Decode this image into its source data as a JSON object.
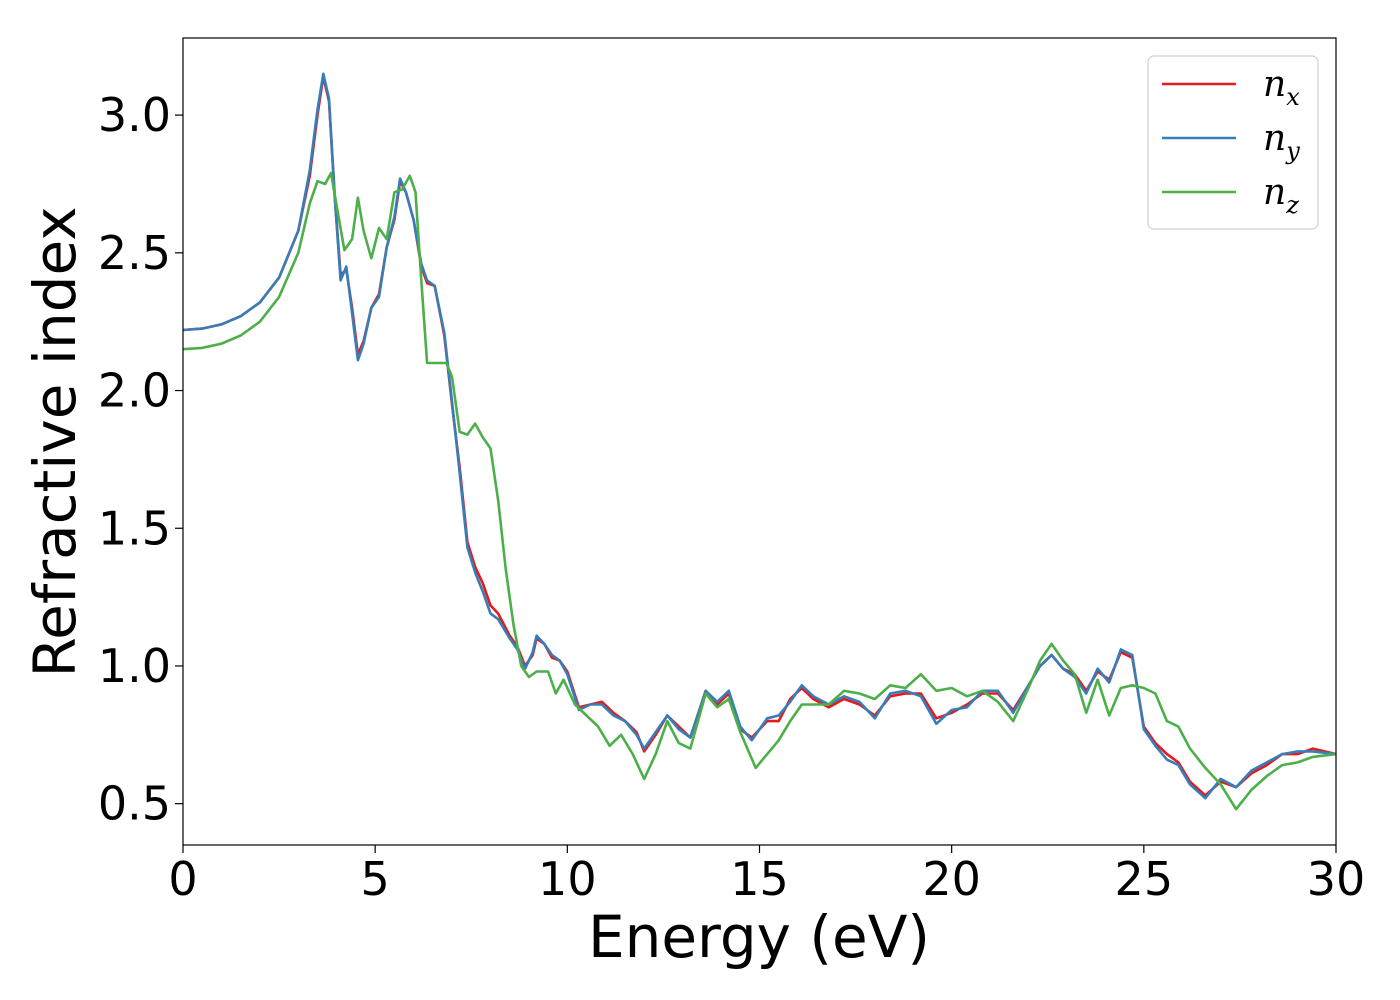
{
  "chart_data": {
    "type": "line",
    "xlabel": "Energy (eV)",
    "ylabel": "Refractive index",
    "xlim": [
      0,
      30
    ],
    "ylim": [
      0.35,
      3.28
    ],
    "xticks": [
      "0",
      "5",
      "10",
      "15",
      "20",
      "25",
      "30"
    ],
    "yticks": [
      "0.5",
      "1.0",
      "1.5",
      "2.0",
      "2.5",
      "3.0"
    ],
    "grid": false,
    "legend_position": "top-right",
    "series": [
      {
        "name": "n_x",
        "label_base": "n",
        "label_sub": "x",
        "color": "#e41a1c",
        "points": [
          [
            0,
            2.22
          ],
          [
            0.5,
            2.225
          ],
          [
            1,
            2.24
          ],
          [
            1.5,
            2.27
          ],
          [
            2,
            2.32
          ],
          [
            2.5,
            2.41
          ],
          [
            3,
            2.58
          ],
          [
            3.3,
            2.78
          ],
          [
            3.5,
            3.0
          ],
          [
            3.65,
            3.14
          ],
          [
            3.8,
            3.05
          ],
          [
            3.95,
            2.7
          ],
          [
            4.1,
            2.42
          ],
          [
            4.25,
            2.44
          ],
          [
            4.4,
            2.3
          ],
          [
            4.55,
            2.13
          ],
          [
            4.7,
            2.18
          ],
          [
            4.9,
            2.3
          ],
          [
            5.1,
            2.35
          ],
          [
            5.3,
            2.52
          ],
          [
            5.5,
            2.62
          ],
          [
            5.65,
            2.76
          ],
          [
            5.8,
            2.72
          ],
          [
            6.0,
            2.62
          ],
          [
            6.2,
            2.45
          ],
          [
            6.35,
            2.39
          ],
          [
            6.55,
            2.38
          ],
          [
            6.8,
            2.2
          ],
          [
            7.0,
            1.95
          ],
          [
            7.2,
            1.72
          ],
          [
            7.4,
            1.45
          ],
          [
            7.6,
            1.36
          ],
          [
            7.8,
            1.3
          ],
          [
            8.0,
            1.22
          ],
          [
            8.2,
            1.19
          ],
          [
            8.5,
            1.11
          ],
          [
            8.7,
            1.07
          ],
          [
            8.9,
            1.0
          ],
          [
            9.1,
            1.04
          ],
          [
            9.2,
            1.1
          ],
          [
            9.4,
            1.08
          ],
          [
            9.6,
            1.03
          ],
          [
            9.8,
            1.02
          ],
          [
            10.0,
            0.98
          ],
          [
            10.3,
            0.85
          ],
          [
            10.6,
            0.86
          ],
          [
            10.9,
            0.87
          ],
          [
            11.2,
            0.83
          ],
          [
            11.5,
            0.8
          ],
          [
            11.8,
            0.76
          ],
          [
            12.0,
            0.69
          ],
          [
            12.3,
            0.75
          ],
          [
            12.6,
            0.82
          ],
          [
            12.9,
            0.78
          ],
          [
            13.2,
            0.74
          ],
          [
            13.6,
            0.91
          ],
          [
            13.9,
            0.86
          ],
          [
            14.2,
            0.9
          ],
          [
            14.5,
            0.77
          ],
          [
            14.8,
            0.74
          ],
          [
            15.2,
            0.8
          ],
          [
            15.5,
            0.8
          ],
          [
            15.8,
            0.88
          ],
          [
            16.1,
            0.92
          ],
          [
            16.4,
            0.88
          ],
          [
            16.8,
            0.85
          ],
          [
            17.2,
            0.88
          ],
          [
            17.6,
            0.86
          ],
          [
            18.0,
            0.82
          ],
          [
            18.4,
            0.89
          ],
          [
            18.8,
            0.9
          ],
          [
            19.2,
            0.9
          ],
          [
            19.6,
            0.81
          ],
          [
            20.0,
            0.83
          ],
          [
            20.4,
            0.86
          ],
          [
            20.8,
            0.9
          ],
          [
            21.2,
            0.9
          ],
          [
            21.6,
            0.84
          ],
          [
            22.0,
            0.93
          ],
          [
            22.3,
            1.0
          ],
          [
            22.6,
            1.04
          ],
          [
            22.9,
            0.99
          ],
          [
            23.2,
            0.97
          ],
          [
            23.5,
            0.91
          ],
          [
            23.8,
            0.98
          ],
          [
            24.1,
            0.95
          ],
          [
            24.4,
            1.05
          ],
          [
            24.7,
            1.03
          ],
          [
            25.0,
            0.78
          ],
          [
            25.3,
            0.72
          ],
          [
            25.6,
            0.68
          ],
          [
            25.9,
            0.65
          ],
          [
            26.2,
            0.58
          ],
          [
            26.6,
            0.53
          ],
          [
            27.0,
            0.58
          ],
          [
            27.4,
            0.56
          ],
          [
            27.8,
            0.61
          ],
          [
            28.2,
            0.64
          ],
          [
            28.6,
            0.68
          ],
          [
            29.0,
            0.68
          ],
          [
            29.4,
            0.7
          ],
          [
            30,
            0.68
          ]
        ]
      },
      {
        "name": "n_y",
        "label_base": "n",
        "label_sub": "y",
        "color": "#377eb8",
        "points": [
          [
            0,
            2.22
          ],
          [
            0.5,
            2.225
          ],
          [
            1,
            2.24
          ],
          [
            1.5,
            2.27
          ],
          [
            2,
            2.32
          ],
          [
            2.5,
            2.41
          ],
          [
            3,
            2.58
          ],
          [
            3.3,
            2.8
          ],
          [
            3.5,
            3.02
          ],
          [
            3.65,
            3.15
          ],
          [
            3.8,
            3.06
          ],
          [
            3.95,
            2.7
          ],
          [
            4.1,
            2.4
          ],
          [
            4.25,
            2.45
          ],
          [
            4.4,
            2.28
          ],
          [
            4.55,
            2.11
          ],
          [
            4.7,
            2.17
          ],
          [
            4.9,
            2.3
          ],
          [
            5.1,
            2.34
          ],
          [
            5.3,
            2.52
          ],
          [
            5.5,
            2.63
          ],
          [
            5.65,
            2.77
          ],
          [
            5.8,
            2.72
          ],
          [
            6.0,
            2.62
          ],
          [
            6.2,
            2.46
          ],
          [
            6.35,
            2.4
          ],
          [
            6.55,
            2.38
          ],
          [
            6.8,
            2.21
          ],
          [
            7.0,
            1.96
          ],
          [
            7.2,
            1.7
          ],
          [
            7.4,
            1.43
          ],
          [
            7.6,
            1.34
          ],
          [
            7.8,
            1.27
          ],
          [
            8.0,
            1.19
          ],
          [
            8.2,
            1.17
          ],
          [
            8.5,
            1.1
          ],
          [
            8.7,
            1.06
          ],
          [
            8.9,
            0.99
          ],
          [
            9.1,
            1.05
          ],
          [
            9.2,
            1.11
          ],
          [
            9.4,
            1.08
          ],
          [
            9.6,
            1.04
          ],
          [
            9.8,
            1.02
          ],
          [
            10.0,
            0.97
          ],
          [
            10.3,
            0.84
          ],
          [
            10.6,
            0.86
          ],
          [
            10.9,
            0.86
          ],
          [
            11.2,
            0.82
          ],
          [
            11.5,
            0.8
          ],
          [
            11.8,
            0.75
          ],
          [
            12.0,
            0.7
          ],
          [
            12.3,
            0.76
          ],
          [
            12.6,
            0.82
          ],
          [
            12.9,
            0.77
          ],
          [
            13.2,
            0.74
          ],
          [
            13.6,
            0.91
          ],
          [
            13.9,
            0.87
          ],
          [
            14.2,
            0.91
          ],
          [
            14.5,
            0.78
          ],
          [
            14.8,
            0.73
          ],
          [
            15.2,
            0.81
          ],
          [
            15.5,
            0.82
          ],
          [
            15.8,
            0.87
          ],
          [
            16.1,
            0.93
          ],
          [
            16.4,
            0.89
          ],
          [
            16.8,
            0.86
          ],
          [
            17.2,
            0.89
          ],
          [
            17.6,
            0.87
          ],
          [
            18.0,
            0.81
          ],
          [
            18.4,
            0.9
          ],
          [
            18.8,
            0.91
          ],
          [
            19.2,
            0.89
          ],
          [
            19.6,
            0.79
          ],
          [
            20.0,
            0.84
          ],
          [
            20.4,
            0.85
          ],
          [
            20.8,
            0.91
          ],
          [
            21.2,
            0.91
          ],
          [
            21.6,
            0.83
          ],
          [
            22.0,
            0.93
          ],
          [
            22.3,
            1.0
          ],
          [
            22.6,
            1.04
          ],
          [
            22.9,
            0.99
          ],
          [
            23.2,
            0.96
          ],
          [
            23.5,
            0.9
          ],
          [
            23.8,
            0.99
          ],
          [
            24.1,
            0.94
          ],
          [
            24.4,
            1.06
          ],
          [
            24.7,
            1.04
          ],
          [
            25.0,
            0.77
          ],
          [
            25.3,
            0.71
          ],
          [
            25.6,
            0.66
          ],
          [
            25.9,
            0.64
          ],
          [
            26.2,
            0.57
          ],
          [
            26.6,
            0.52
          ],
          [
            27.0,
            0.59
          ],
          [
            27.4,
            0.56
          ],
          [
            27.8,
            0.62
          ],
          [
            28.2,
            0.65
          ],
          [
            28.6,
            0.68
          ],
          [
            29.0,
            0.69
          ],
          [
            29.4,
            0.69
          ],
          [
            30,
            0.68
          ]
        ]
      },
      {
        "name": "n_z",
        "label_base": "n",
        "label_sub": "z",
        "color": "#4daf4a",
        "points": [
          [
            0,
            2.15
          ],
          [
            0.5,
            2.155
          ],
          [
            1,
            2.17
          ],
          [
            1.5,
            2.2
          ],
          [
            2,
            2.25
          ],
          [
            2.5,
            2.34
          ],
          [
            3,
            2.5
          ],
          [
            3.3,
            2.68
          ],
          [
            3.5,
            2.76
          ],
          [
            3.7,
            2.75
          ],
          [
            3.85,
            2.79
          ],
          [
            4.0,
            2.67
          ],
          [
            4.2,
            2.51
          ],
          [
            4.4,
            2.55
          ],
          [
            4.55,
            2.7
          ],
          [
            4.7,
            2.58
          ],
          [
            4.9,
            2.48
          ],
          [
            5.1,
            2.59
          ],
          [
            5.3,
            2.55
          ],
          [
            5.5,
            2.72
          ],
          [
            5.7,
            2.73
          ],
          [
            5.9,
            2.78
          ],
          [
            6.05,
            2.72
          ],
          [
            6.2,
            2.4
          ],
          [
            6.35,
            2.1
          ],
          [
            6.6,
            2.1
          ],
          [
            6.85,
            2.1
          ],
          [
            7.0,
            2.05
          ],
          [
            7.2,
            1.85
          ],
          [
            7.4,
            1.84
          ],
          [
            7.6,
            1.88
          ],
          [
            7.8,
            1.83
          ],
          [
            8.0,
            1.79
          ],
          [
            8.2,
            1.6
          ],
          [
            8.4,
            1.35
          ],
          [
            8.6,
            1.15
          ],
          [
            8.8,
            1.0
          ],
          [
            9.0,
            0.96
          ],
          [
            9.2,
            0.98
          ],
          [
            9.5,
            0.98
          ],
          [
            9.7,
            0.9
          ],
          [
            9.9,
            0.95
          ],
          [
            10.2,
            0.86
          ],
          [
            10.5,
            0.82
          ],
          [
            10.8,
            0.78
          ],
          [
            11.1,
            0.71
          ],
          [
            11.4,
            0.75
          ],
          [
            11.7,
            0.68
          ],
          [
            12.0,
            0.59
          ],
          [
            12.3,
            0.68
          ],
          [
            12.6,
            0.8
          ],
          [
            12.9,
            0.72
          ],
          [
            13.2,
            0.7
          ],
          [
            13.6,
            0.9
          ],
          [
            13.9,
            0.85
          ],
          [
            14.2,
            0.88
          ],
          [
            14.5,
            0.76
          ],
          [
            14.9,
            0.63
          ],
          [
            15.2,
            0.68
          ],
          [
            15.5,
            0.73
          ],
          [
            15.8,
            0.8
          ],
          [
            16.1,
            0.86
          ],
          [
            16.4,
            0.86
          ],
          [
            16.8,
            0.86
          ],
          [
            17.2,
            0.91
          ],
          [
            17.6,
            0.9
          ],
          [
            18.0,
            0.88
          ],
          [
            18.4,
            0.93
          ],
          [
            18.8,
            0.92
          ],
          [
            19.2,
            0.97
          ],
          [
            19.6,
            0.91
          ],
          [
            20.0,
            0.92
          ],
          [
            20.4,
            0.89
          ],
          [
            20.8,
            0.91
          ],
          [
            21.2,
            0.87
          ],
          [
            21.6,
            0.8
          ],
          [
            22.0,
            0.92
          ],
          [
            22.3,
            1.02
          ],
          [
            22.6,
            1.08
          ],
          [
            22.9,
            1.02
          ],
          [
            23.2,
            0.97
          ],
          [
            23.5,
            0.83
          ],
          [
            23.8,
            0.95
          ],
          [
            24.1,
            0.82
          ],
          [
            24.4,
            0.92
          ],
          [
            24.7,
            0.93
          ],
          [
            25.0,
            0.92
          ],
          [
            25.3,
            0.9
          ],
          [
            25.6,
            0.8
          ],
          [
            25.9,
            0.78
          ],
          [
            26.2,
            0.7
          ],
          [
            26.6,
            0.63
          ],
          [
            27.0,
            0.57
          ],
          [
            27.4,
            0.48
          ],
          [
            27.8,
            0.55
          ],
          [
            28.2,
            0.6
          ],
          [
            28.6,
            0.64
          ],
          [
            29.0,
            0.65
          ],
          [
            29.4,
            0.67
          ],
          [
            30,
            0.68
          ]
        ]
      }
    ]
  }
}
